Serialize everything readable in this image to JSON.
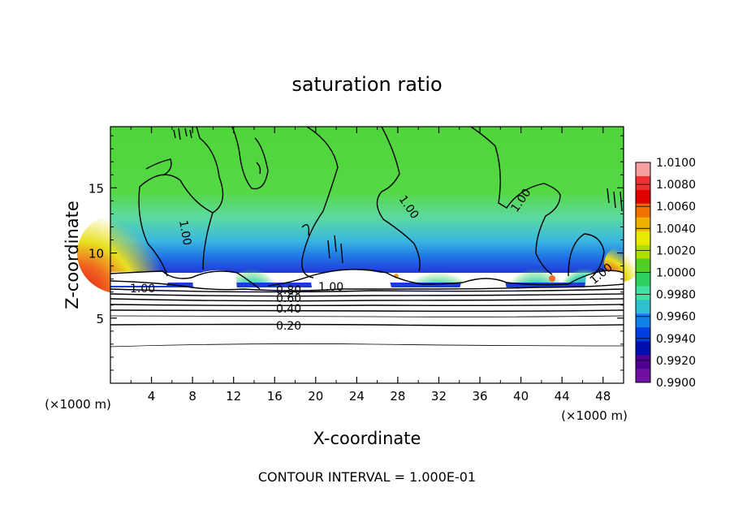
{
  "chart_data": {
    "type": "heatmap",
    "title": "saturation ratio",
    "xlabel": "X-coordinate",
    "ylabel": "Z-coordinate",
    "x_unit": "(×1000 m)",
    "y_unit": "(×1000 m)",
    "xlim": [
      0,
      50
    ],
    "ylim": [
      0,
      19.7
    ],
    "x_ticks": [
      "4",
      "8",
      "12",
      "16",
      "20",
      "24",
      "28",
      "32",
      "36",
      "40",
      "44",
      "48"
    ],
    "y_ticks": [
      "5",
      "10",
      "15"
    ],
    "footer": "CONTOUR INTERVAL = 1.000E-01",
    "colorbar": {
      "labels": [
        "1.0100",
        "1.0080",
        "1.0060",
        "1.0040",
        "1.0020",
        "1.0000",
        "0.9980",
        "0.9960",
        "0.9940",
        "0.9920",
        "0.9900"
      ],
      "colors": [
        "#f7a0a0",
        "#f03030",
        "#e00000",
        "#f07000",
        "#f0b000",
        "#e8e800",
        "#b0e000",
        "#50d020",
        "#30d060",
        "#40e0a0",
        "#30c0d0",
        "#1080e8",
        "#0040e0",
        "#0010b0",
        "#500090",
        "#7010a0"
      ]
    },
    "contour_labels": [
      "1.00",
      "1.00",
      "1.00",
      "1.00",
      "1.00",
      "1.00",
      "0.80",
      "0.60",
      "0.40",
      "0.20"
    ],
    "contour_levels": [
      0.2,
      0.3,
      0.4,
      0.5,
      0.6,
      0.7,
      0.8,
      0.9,
      1.0
    ]
  }
}
